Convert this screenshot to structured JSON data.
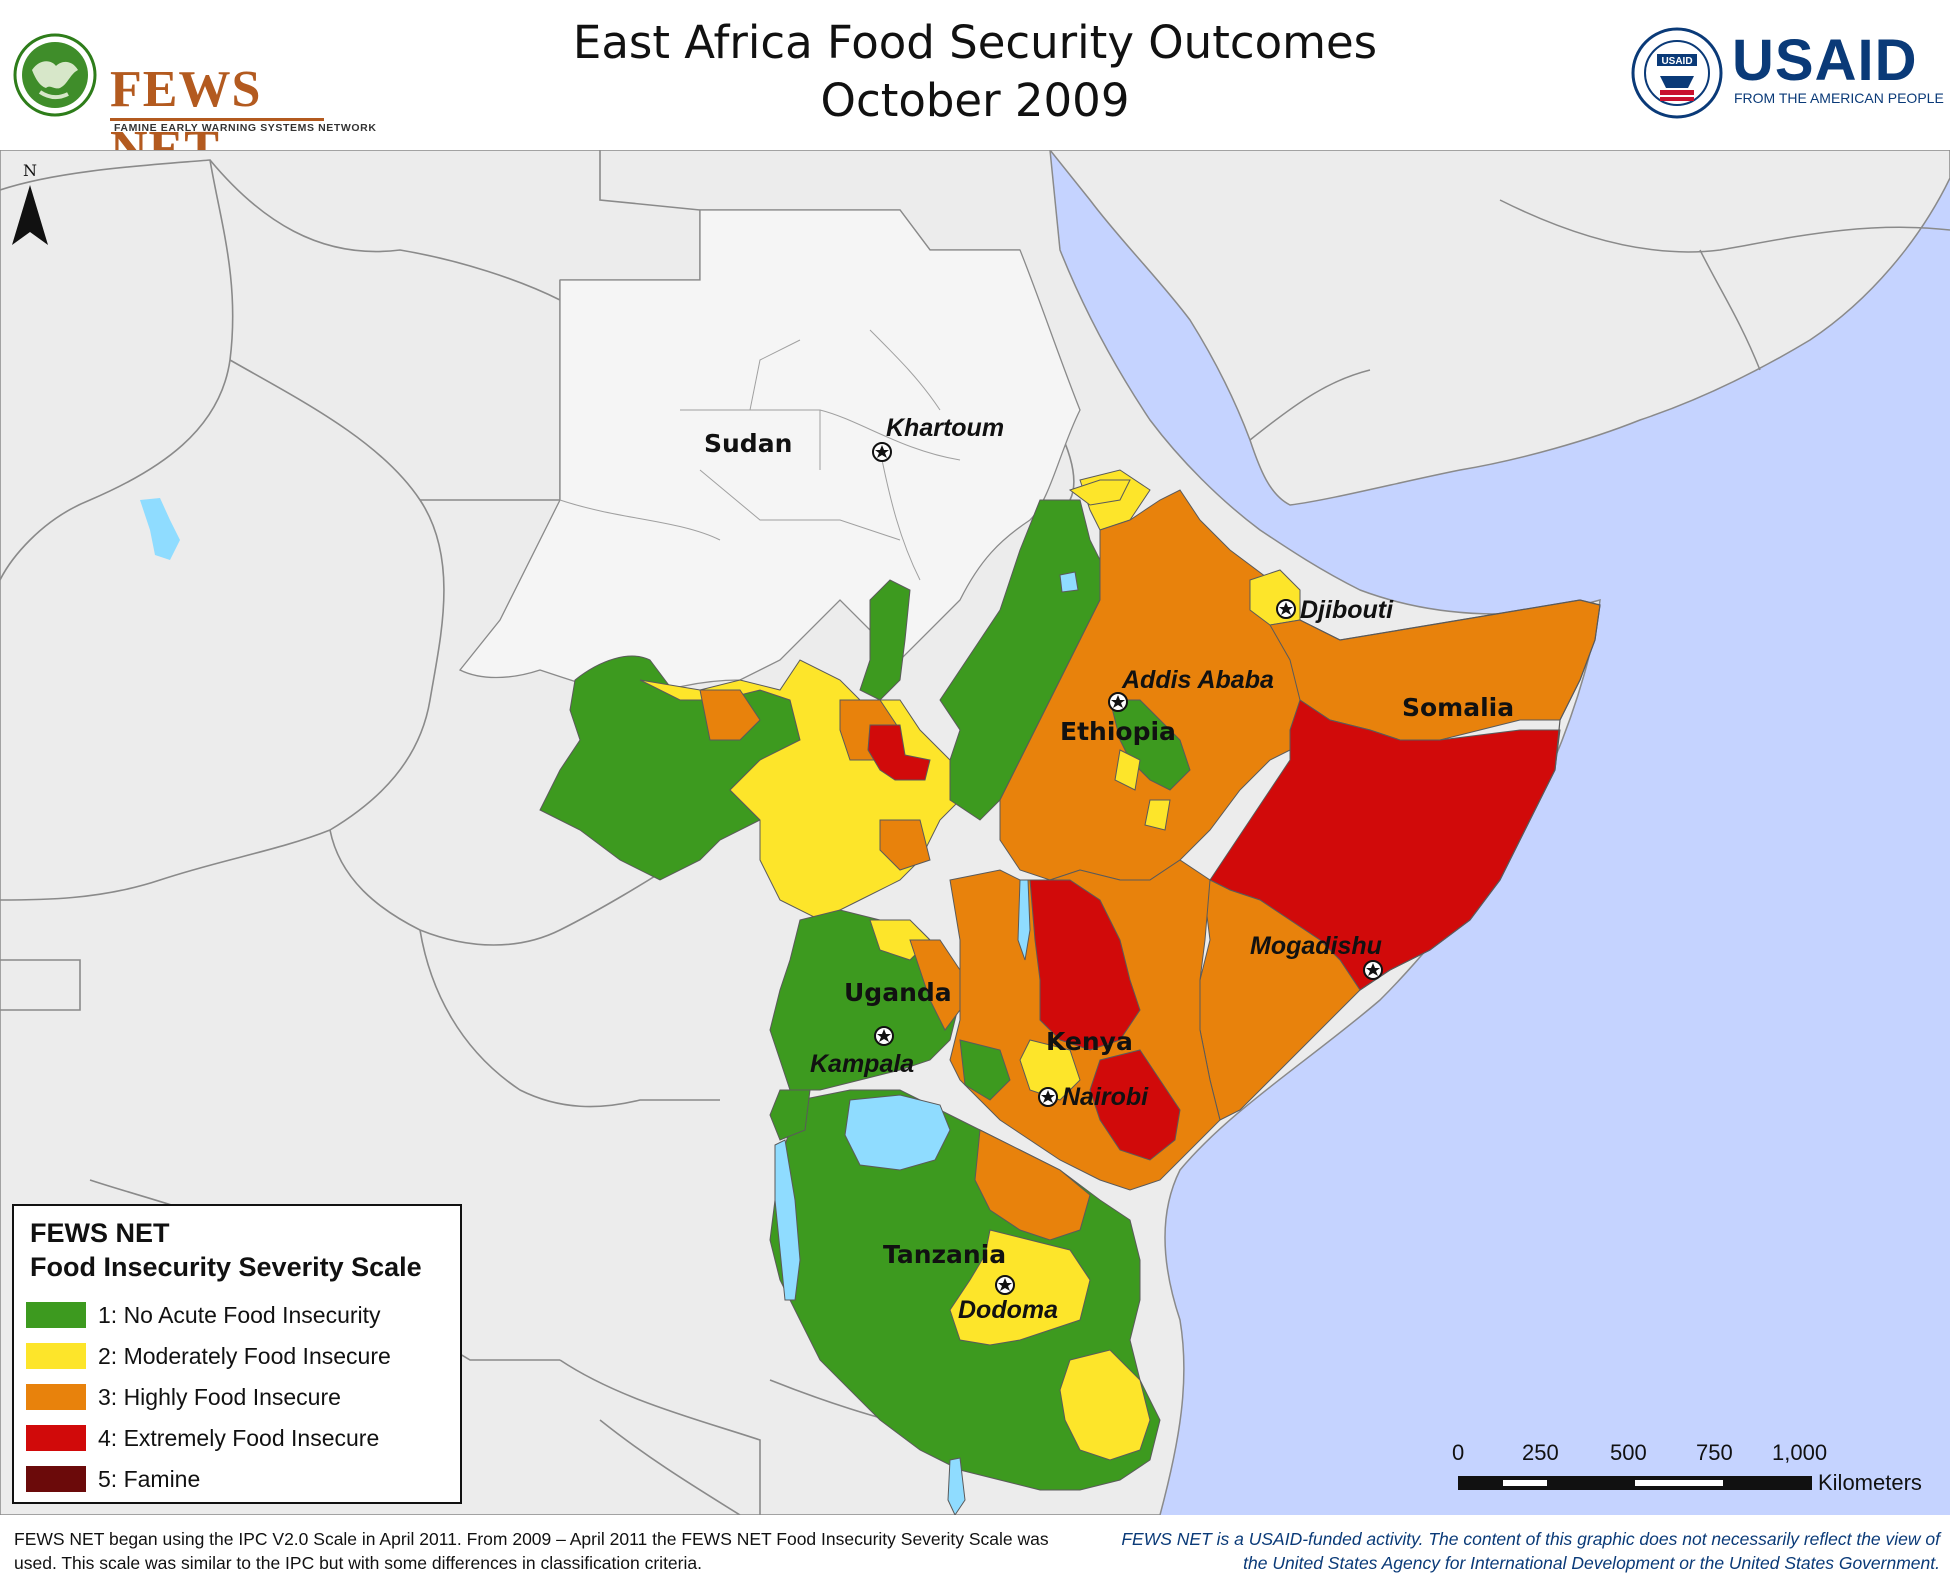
{
  "header": {
    "title_line1": "East Africa Food Security Outcomes",
    "title_line2": "October 2009",
    "fews_logo": {
      "name": "FEWS NET",
      "tagline": "FAMINE EARLY WARNING SYSTEMS NETWORK",
      "icon": "globe-icon"
    },
    "usaid_logo": {
      "name": "USAID",
      "tagline": "FROM THE AMERICAN PEOPLE",
      "seal_text": "USAID",
      "icon": "usaid-seal-icon"
    }
  },
  "map": {
    "north_label": "N",
    "north_icon": "north-arrow-icon",
    "colors": {
      "land_other": "#ececec",
      "water": "#c5d3ff",
      "lake": "#8fdcff",
      "border": "#8a8a8a",
      "phase1": "#3d9a1f",
      "phase2": "#fde52a",
      "phase3": "#e8820c",
      "phase4": "#d10a0a",
      "phase5": "#6b0a0a"
    },
    "countries": [
      {
        "id": "sudan",
        "label": "Sudan"
      },
      {
        "id": "ethiopia",
        "label": "Ethiopia"
      },
      {
        "id": "somalia",
        "label": "Somalia"
      },
      {
        "id": "uganda",
        "label": "Uganda"
      },
      {
        "id": "kenya",
        "label": "Kenya"
      },
      {
        "id": "tanzania",
        "label": "Tanzania"
      }
    ],
    "cities": [
      {
        "id": "khartoum",
        "label": "Khartoum"
      },
      {
        "id": "djibouti",
        "label": "Djibouti"
      },
      {
        "id": "addis-ababa",
        "label": "Addis Ababa"
      },
      {
        "id": "mogadishu",
        "label": "Mogadishu"
      },
      {
        "id": "kampala",
        "label": "Kampala"
      },
      {
        "id": "nairobi",
        "label": "Nairobi"
      },
      {
        "id": "dodoma",
        "label": "Dodoma"
      }
    ],
    "capital_icon": "capital-star-icon"
  },
  "legend": {
    "title_line1": "FEWS NET",
    "title_line2": "Food Insecurity Severity Scale",
    "items": [
      {
        "label": "1: No Acute Food Insecurity",
        "color": "#3d9a1f"
      },
      {
        "label": "2: Moderately Food Insecure",
        "color": "#fde52a"
      },
      {
        "label": "3: Highly Food Insecure",
        "color": "#e8820c"
      },
      {
        "label": "4: Extremely Food Insecure",
        "color": "#d10a0a"
      },
      {
        "label": "5: Famine",
        "color": "#6b0a0a"
      }
    ]
  },
  "scale_bar": {
    "ticks": [
      "0",
      "250",
      "500",
      "750",
      "1,000"
    ],
    "unit": "Kilometers"
  },
  "footer": {
    "left_text": "FEWS NET began using the IPC V2.0 Scale in April 2011. From 2009 – April 2011 the FEWS NET Food Insecurity Severity Scale was used. This scale was similar to the IPC but with some differences in classification criteria.",
    "right_text": "FEWS NET is a USAID-funded activity. The content of this graphic does not necessarily reflect the view of the United States Agency for International Development or the United States Government."
  }
}
